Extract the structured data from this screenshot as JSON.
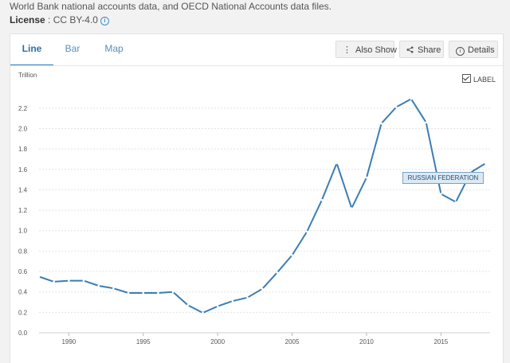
{
  "header": {
    "source_text": "World Bank national accounts data, and OECD National Accounts data files.",
    "license_label": "License",
    "license_value": " : CC BY-4.0"
  },
  "tabs": [
    {
      "label": "Line",
      "active": true
    },
    {
      "label": "Bar",
      "active": false
    },
    {
      "label": "Map",
      "active": false
    }
  ],
  "toolbar": {
    "also_show_label": "Also Show",
    "share_label": "Share",
    "details_label": "Details"
  },
  "label_toggle": {
    "label": "LABEL",
    "checked": true
  },
  "accent_color": "#2f7fc1",
  "chart_data": {
    "type": "line",
    "ylabel": "Trillion",
    "ylim": [
      0,
      2.3
    ],
    "xlim": [
      1988,
      2018.3
    ],
    "y_ticks": [
      "0.0",
      "0.2",
      "0.4",
      "0.6",
      "0.8",
      "1.0",
      "1.2",
      "1.4",
      "1.6",
      "1.8",
      "2.0",
      "2.2"
    ],
    "x_ticks": [
      "1990",
      "1995",
      "2000",
      "2005",
      "2010",
      "2015"
    ],
    "grid": "horizontal dashed",
    "series": [
      {
        "name": "RUSSIAN FEDERATION",
        "color": "#3b7db3",
        "points": [
          [
            1988,
            0.55
          ],
          [
            1989,
            0.5
          ],
          [
            1990,
            0.51
          ],
          [
            1991,
            0.51
          ],
          [
            1992,
            0.46
          ],
          [
            1993,
            0.435
          ],
          [
            1994,
            0.39
          ],
          [
            1995,
            0.39
          ],
          [
            1996,
            0.39
          ],
          [
            1997,
            0.4
          ],
          [
            1998,
            0.27
          ],
          [
            1999,
            0.195
          ],
          [
            2000,
            0.26
          ],
          [
            2001,
            0.31
          ],
          [
            2002,
            0.345
          ],
          [
            2003,
            0.43
          ],
          [
            2004,
            0.59
          ],
          [
            2005,
            0.76
          ],
          [
            2006,
            0.99
          ],
          [
            2007,
            1.3
          ],
          [
            2008,
            1.66
          ],
          [
            2009,
            1.22
          ],
          [
            2010,
            1.52
          ],
          [
            2011,
            2.05
          ],
          [
            2012,
            2.21
          ],
          [
            2013,
            2.29
          ],
          [
            2014,
            2.06
          ],
          [
            2015,
            1.36
          ],
          [
            2016,
            1.28
          ],
          [
            2017,
            1.57
          ],
          [
            2018,
            1.66
          ]
        ]
      }
    ]
  }
}
